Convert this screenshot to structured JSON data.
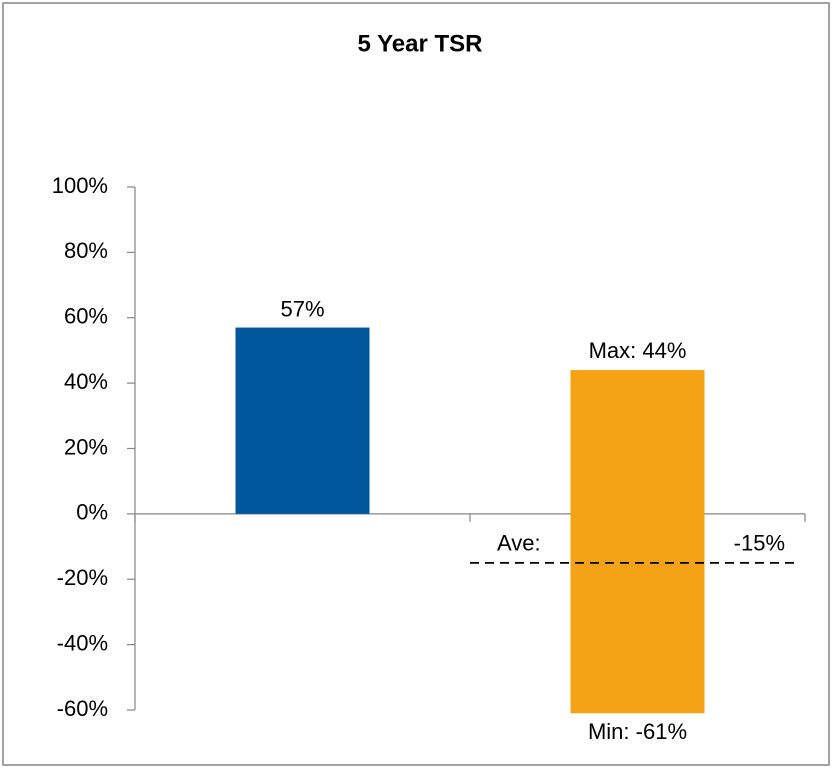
{
  "chart_data": {
    "type": "bar",
    "title": "5 Year TSR",
    "categories": [
      null,
      null
    ],
    "values": [
      57,
      null
    ],
    "value_labels": [
      "57%",
      null
    ],
    "color": "#01579b",
    "range_bar": {
      "max": 44,
      "min": -61,
      "max_label": "Max: 44%",
      "min_label": "Min: -61%",
      "color": "#f5a316"
    },
    "average": {
      "value": -15,
      "label": "Ave:",
      "value_label": "-15%",
      "color": "#000000"
    },
    "ylim": [
      -60,
      100
    ],
    "yticks": [
      {
        "value": -60,
        "label": "-60%"
      },
      {
        "value": -40,
        "label": "-40%"
      },
      {
        "value": -20,
        "label": "-20%"
      },
      {
        "value": 0,
        "label": "0%"
      },
      {
        "value": 20,
        "label": "20%"
      },
      {
        "value": 40,
        "label": "40%"
      },
      {
        "value": 60,
        "label": "60%"
      },
      {
        "value": 80,
        "label": "80%"
      },
      {
        "value": 100,
        "label": "100%"
      }
    ],
    "grid": false
  }
}
